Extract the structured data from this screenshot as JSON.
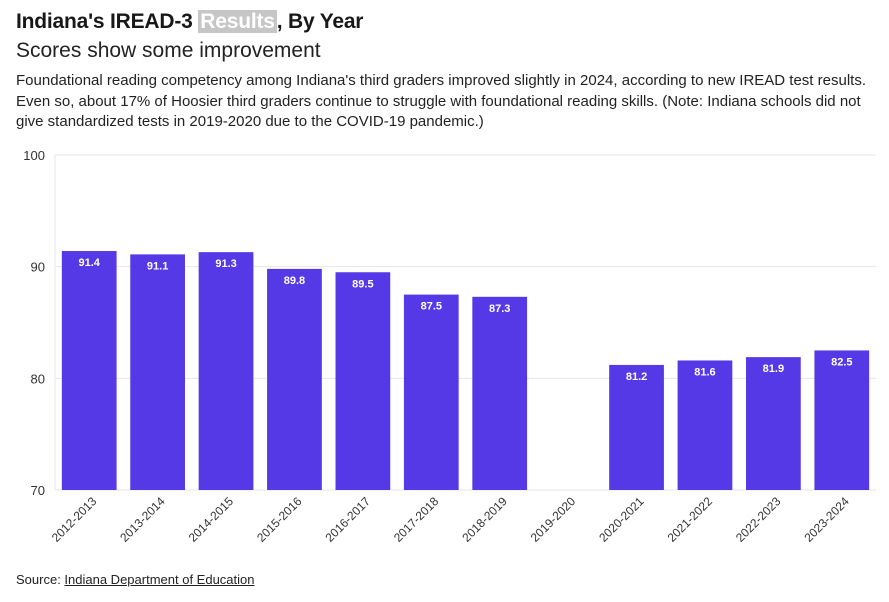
{
  "header": {
    "title_prefix": "Indiana's IREAD-3 ",
    "title_highlight": "Results",
    "title_suffix": ", By Year",
    "subtitle": "Scores show some improvement",
    "description": "Foundational reading competency among Indiana's third graders improved slightly in 2024, according to new IREAD test results. Even so, about 17% of Hoosier third graders continue to struggle with foundational reading skills. (Note: Indiana schools did not give standardized tests in 2019-2020 due to the COVID-19 pandemic.)"
  },
  "colors": {
    "bar": "#5539e6",
    "grid": "#e6e6e6",
    "label": "#ffffff"
  },
  "chart_data": {
    "type": "bar",
    "categories": [
      "2012-2013",
      "2013-2014",
      "2014-2015",
      "2015-2016",
      "2016-2017",
      "2017-2018",
      "2018-2019",
      "2019-2020",
      "2020-2021",
      "2021-2022",
      "2022-2023",
      "2023-2024"
    ],
    "values": [
      91.4,
      91.1,
      91.3,
      89.8,
      89.5,
      87.5,
      87.3,
      null,
      81.2,
      81.6,
      81.9,
      82.5
    ],
    "ylim": [
      70,
      100
    ],
    "yticks": [
      "100",
      "90",
      "80",
      "70"
    ],
    "title": "Indiana's IREAD-3 Results, By Year",
    "xlabel": "",
    "ylabel": "",
    "grid": true,
    "legend": "none"
  },
  "source": {
    "label": "Source: ",
    "link_text": "Indiana Department of Education"
  }
}
